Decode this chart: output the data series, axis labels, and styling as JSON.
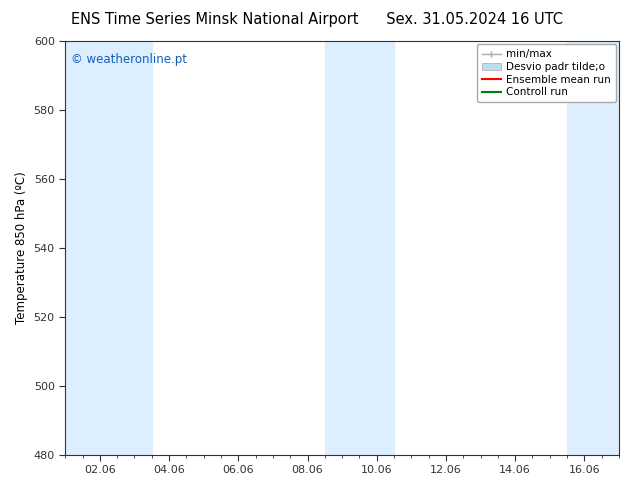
{
  "title_left": "ENS Time Series Minsk National Airport",
  "title_right": "Sex. 31.05.2024 16 UTC",
  "ylabel": "Temperature 850 hPa (ºC)",
  "ylim": [
    480,
    600
  ],
  "yticks": [
    480,
    500,
    520,
    540,
    560,
    580,
    600
  ],
  "xtick_labels": [
    "02.06",
    "04.06",
    "06.06",
    "08.06",
    "10.06",
    "12.06",
    "14.06",
    "16.06"
  ],
  "xtick_positions": [
    1,
    3,
    5,
    7,
    9,
    11,
    13,
    15
  ],
  "xlim": [
    0,
    16
  ],
  "bg_color": "#ffffff",
  "plot_bg_color": "#ffffff",
  "shaded_bands": [
    {
      "x_start": 0.0,
      "x_end": 2.5,
      "color": "#ddeeff"
    },
    {
      "x_start": 7.5,
      "x_end": 9.5,
      "color": "#ddeeff"
    },
    {
      "x_start": 14.5,
      "x_end": 16.0,
      "color": "#ddeeff"
    }
  ],
  "watermark_text": "© weatheronline.pt",
  "watermark_color": "#1060bb",
  "watermark_fontsize": 8.5,
  "title_fontsize": 10.5,
  "axis_label_fontsize": 8.5,
  "tick_fontsize": 8.0,
  "legend_fontsize": 7.5,
  "spine_color": "#333333",
  "grid_color": "#cccccc",
  "legend_minmax_color": "#aaaaaa",
  "legend_desvio_color": "#bbddee",
  "legend_ensemble_color": "#ff0000",
  "legend_controll_color": "#008000"
}
